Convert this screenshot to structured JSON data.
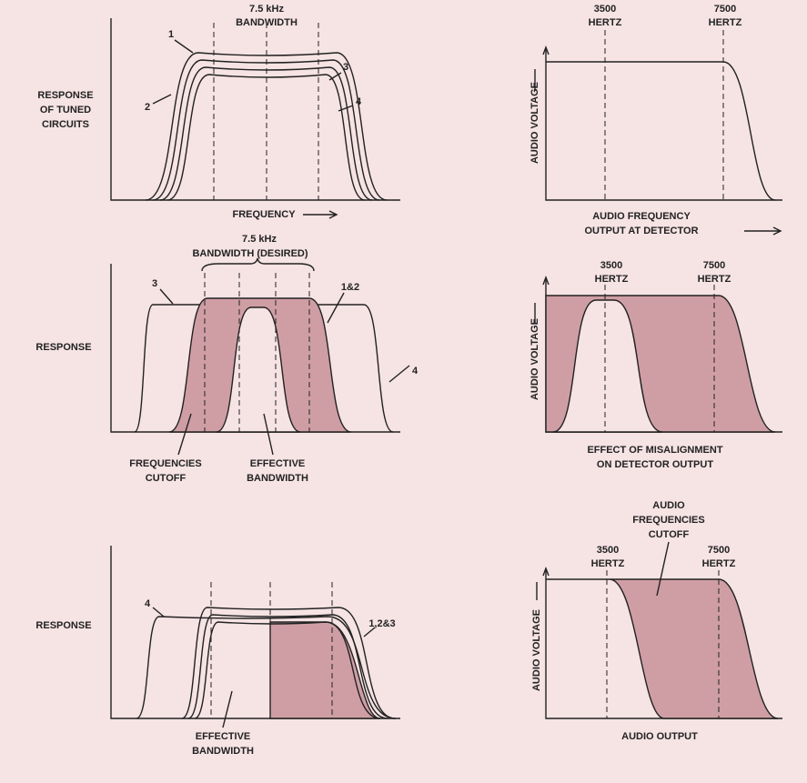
{
  "panels": [
    {
      "top_label": [
        "7.5 kHz",
        "BANDWIDTH"
      ],
      "side_label": [
        "RESPONSE",
        "OF TUNED",
        "CIRCUITS"
      ],
      "curve_labels": [
        "1",
        "2",
        "3",
        "4"
      ],
      "x_label": "FREQUENCY"
    },
    {
      "markers": [
        [
          "3500",
          "HERTZ"
        ],
        [
          "7500",
          "HERTZ"
        ]
      ],
      "y_label": "AUDIO VOLTAGE",
      "x_label": [
        "AUDIO FREQUENCY",
        "OUTPUT AT DETECTOR"
      ]
    },
    {
      "top_label": [
        "7.5 kHz",
        "BANDWIDTH (DESIRED)"
      ],
      "curve_labels": [
        "3",
        "1&2",
        "4"
      ],
      "side_label": [
        "RESPONSE"
      ],
      "notes": [
        [
          "FREQUENCIES",
          "CUTOFF"
        ],
        [
          "EFFECTIVE",
          "BANDWIDTH"
        ]
      ]
    },
    {
      "markers": [
        [
          "3500",
          "HERTZ"
        ],
        [
          "7500",
          "HERTZ"
        ]
      ],
      "y_label": "AUDIO VOLTAGE",
      "x_label": [
        "EFFECT OF MISALIGNMENT",
        "ON DETECTOR OUTPUT"
      ]
    },
    {
      "curve_labels": [
        "4",
        "1,2&3"
      ],
      "side_label": [
        "RESPONSE"
      ],
      "notes": [
        [
          "EFFECTIVE",
          "BANDWIDTH"
        ]
      ]
    },
    {
      "note": [
        "AUDIO",
        "FREQUENCIES",
        "CUTOFF"
      ],
      "markers": [
        [
          "3500",
          "HERTZ"
        ],
        [
          "7500",
          "HERTZ"
        ]
      ],
      "y_label": "AUDIO VOLTAGE",
      "x_label": [
        "AUDIO OUTPUT"
      ]
    }
  ]
}
